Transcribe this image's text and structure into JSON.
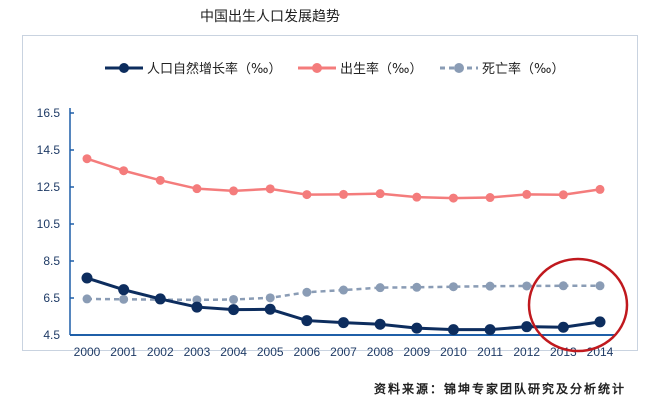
{
  "chart_data": {
    "type": "line",
    "title": "中国出生人口发展趋势",
    "source": "资料来源：锦坤专家团队研究及分析统计",
    "x": [
      2000,
      2001,
      2002,
      2003,
      2004,
      2005,
      2006,
      2007,
      2008,
      2009,
      2010,
      2011,
      2012,
      2013,
      2014
    ],
    "xticks": [
      "2000",
      "2001",
      "2002",
      "2003",
      "2004",
      "2005",
      "2006",
      "2007",
      "2008",
      "2009",
      "2010",
      "2011",
      "2012",
      "2013",
      "2014"
    ],
    "yticks": [
      "16.5",
      "14.5",
      "12.5",
      "10.5",
      "8.5",
      "6.5",
      "4.5"
    ],
    "ylim": [
      4.5,
      16.5
    ],
    "grid": false,
    "legend": "top",
    "series": [
      {
        "name": "人口自然增长率（‰）",
        "color": "#0d2d5e",
        "dashed": false,
        "values": [
          7.58,
          6.95,
          6.45,
          6.01,
          5.87,
          5.89,
          5.28,
          5.17,
          5.08,
          4.87,
          4.79,
          4.79,
          4.95,
          4.92,
          5.21
        ]
      },
      {
        "name": "出生率（‰）",
        "color": "#f47c7c",
        "dashed": false,
        "values": [
          14.03,
          13.38,
          12.86,
          12.41,
          12.29,
          12.4,
          12.09,
          12.1,
          12.14,
          11.95,
          11.9,
          11.93,
          12.1,
          12.08,
          12.37
        ]
      },
      {
        "name": "死亡率（‰）",
        "color": "#8a9cb5",
        "dashed": true,
        "values": [
          6.45,
          6.43,
          6.41,
          6.4,
          6.42,
          6.51,
          6.81,
          6.93,
          7.06,
          7.08,
          7.11,
          7.14,
          7.15,
          7.16,
          7.16
        ]
      }
    ],
    "annotation": {
      "type": "circle",
      "color": "#c0191e",
      "highlight": [
        "2013",
        "2014"
      ]
    }
  }
}
